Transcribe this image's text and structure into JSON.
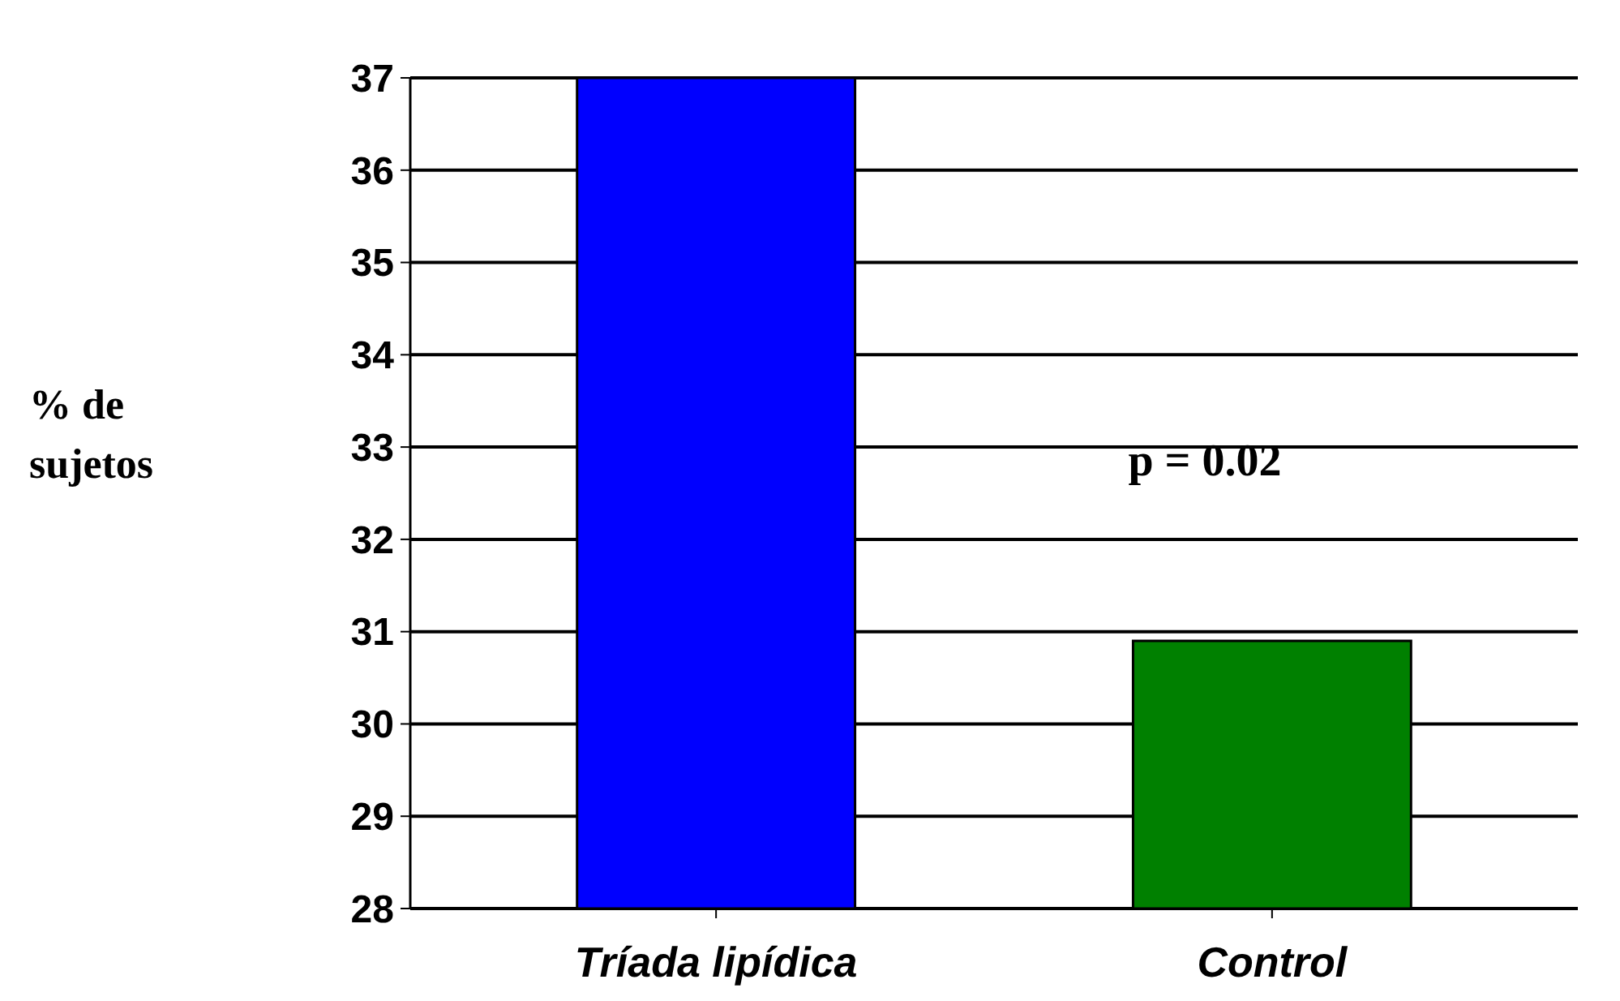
{
  "chart_data": {
    "type": "bar",
    "ylabel": "% de sujetos",
    "categories": [
      "Tríada lipídica",
      "Control"
    ],
    "series": [
      {
        "colors": [
          "#0000ff",
          "#008000"
        ],
        "values": [
          37.0,
          30.9
        ]
      }
    ],
    "ylim": [
      28,
      37
    ],
    "yticks": [
      28,
      29,
      30,
      31,
      32,
      33,
      34,
      35,
      36,
      37
    ],
    "grid": "y",
    "annotations": [
      "p = 0.02"
    ]
  }
}
